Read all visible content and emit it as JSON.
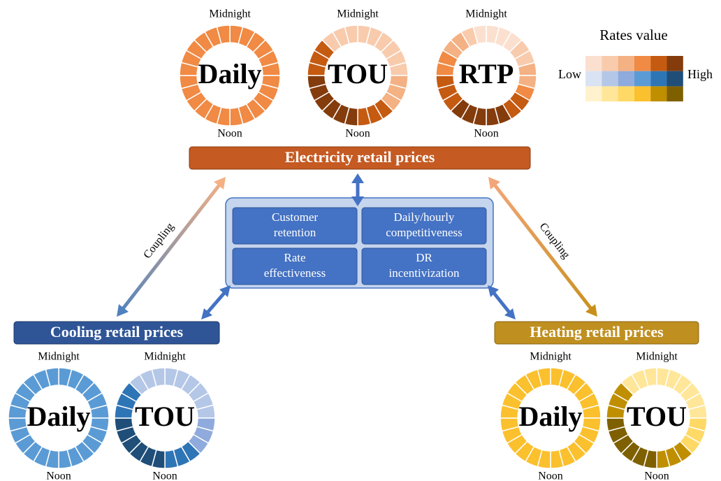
{
  "electricity": {
    "banner": "Electricity retail prices",
    "rings": [
      {
        "label": "Daily",
        "top": "Midnight",
        "bottom": "Noon"
      },
      {
        "label": "TOU",
        "top": "Midnight",
        "bottom": "Noon"
      },
      {
        "label": "RTP",
        "top": "Midnight",
        "bottom": "Noon"
      }
    ]
  },
  "cooling": {
    "banner": "Cooling retail prices",
    "rings": [
      {
        "label": "Daily",
        "top": "Midnight",
        "bottom": "Noon"
      },
      {
        "label": "TOU",
        "top": "Midnight",
        "bottom": "Noon"
      }
    ]
  },
  "heating": {
    "banner": "Heating retail prices",
    "rings": [
      {
        "label": "Daily",
        "top": "Midnight",
        "bottom": "Noon"
      },
      {
        "label": "TOU",
        "top": "Midnight",
        "bottom": "Noon"
      }
    ]
  },
  "center_boxes": [
    [
      "Customer",
      "retention"
    ],
    [
      "Daily/hourly",
      "competitiveness"
    ],
    [
      "Rate",
      "effectiveness"
    ],
    [
      "DR",
      "incentivization"
    ]
  ],
  "coupling": [
    "Coupling",
    "Coupling"
  ],
  "legend": {
    "title": "Rates value",
    "low": "Low",
    "high": "High"
  }
}
